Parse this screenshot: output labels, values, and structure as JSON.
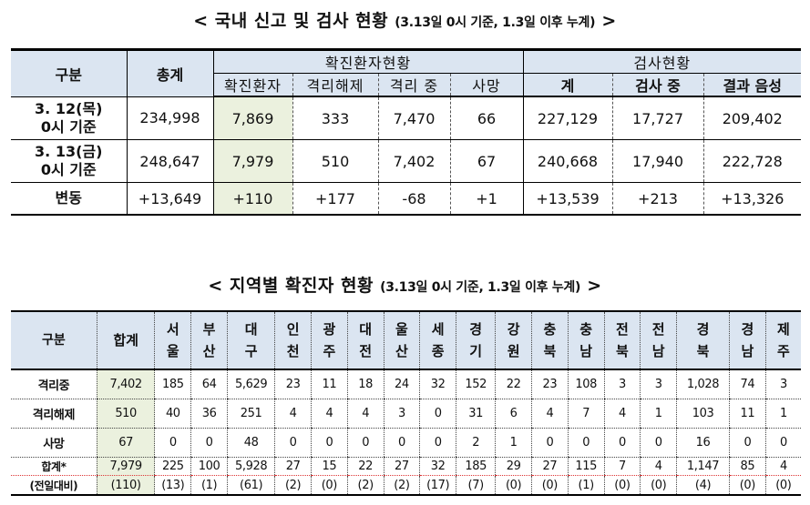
{
  "title1": {
    "main": "< 국내 신고 및 검사 현황",
    "sub": "(3.13일 0시 기준, 1.3일 이후 누계)",
    "end": ">"
  },
  "table1": {
    "headers": {
      "gubun": "구분",
      "total": "총계",
      "confirmed_group": "확진환자현황",
      "test_group": "검사현황",
      "confirmed": "확진환자",
      "released": "격리해제",
      "isolated": "격리 중",
      "deaths": "사망",
      "test_total": "계",
      "testing": "검사 중",
      "negative": "결과 음성"
    },
    "rows": [
      {
        "label1": "3. 12(목)",
        "label2": "0시 기준",
        "total": "234,998",
        "confirmed": "7,869",
        "released": "333",
        "isolated": "7,470",
        "deaths": "66",
        "test_total": "227,129",
        "testing": "17,727",
        "negative": "209,402"
      },
      {
        "label1": "3. 13(금)",
        "label2": "0시 기준",
        "total": "248,647",
        "confirmed": "7,979",
        "released": "510",
        "isolated": "7,402",
        "deaths": "67",
        "test_total": "240,668",
        "testing": "17,940",
        "negative": "222,728"
      }
    ],
    "change": {
      "label": "변동",
      "total": "+13,649",
      "confirmed": "+110",
      "released": "+177",
      "isolated": "-68",
      "deaths": "+1",
      "test_total": "+13,539",
      "testing": "+213",
      "negative": "+13,326"
    }
  },
  "title2": {
    "main": "< 지역별 확진자 현황",
    "sub": "(3.13일 0시 기준, 1.3일 이후 누계)",
    "end": ">"
  },
  "table2": {
    "corner": "구분",
    "sum_header": "합계",
    "regions": [
      [
        "서",
        "울"
      ],
      [
        "부",
        "산"
      ],
      [
        "대",
        "구"
      ],
      [
        "인",
        "천"
      ],
      [
        "광",
        "주"
      ],
      [
        "대",
        "전"
      ],
      [
        "울",
        "산"
      ],
      [
        "세",
        "종"
      ],
      [
        "경",
        "기"
      ],
      [
        "강",
        "원"
      ],
      [
        "충",
        "북"
      ],
      [
        "충",
        "남"
      ],
      [
        "전",
        "북"
      ],
      [
        "전",
        "남"
      ],
      [
        "경",
        "북"
      ],
      [
        "경",
        "남"
      ],
      [
        "제",
        "주"
      ]
    ],
    "rows": [
      {
        "label": "격리중",
        "sum": "7,402",
        "values": [
          "185",
          "64",
          "5,629",
          "23",
          "11",
          "18",
          "24",
          "32",
          "152",
          "22",
          "23",
          "108",
          "3",
          "3",
          "1,028",
          "74",
          "3"
        ]
      },
      {
        "label": "격리해제",
        "sum": "510",
        "values": [
          "40",
          "36",
          "251",
          "4",
          "4",
          "4",
          "3",
          "0",
          "31",
          "6",
          "4",
          "7",
          "4",
          "1",
          "103",
          "11",
          "1"
        ]
      },
      {
        "label": "사망",
        "sum": "67",
        "values": [
          "0",
          "0",
          "48",
          "0",
          "0",
          "0",
          "0",
          "0",
          "2",
          "1",
          "0",
          "0",
          "0",
          "0",
          "16",
          "0",
          "0"
        ]
      }
    ],
    "total": {
      "label": "합계*",
      "sum": "7,979",
      "values": [
        "225",
        "100",
        "5,928",
        "27",
        "15",
        "22",
        "27",
        "32",
        "185",
        "29",
        "27",
        "115",
        "7",
        "4",
        "1,147",
        "85",
        "4"
      ]
    },
    "diff": {
      "label": "(전일대비)",
      "sum": "(110)",
      "values": [
        "(13)",
        "(1)",
        "(61)",
        "(2)",
        "(0)",
        "(2)",
        "(2)",
        "(17)",
        "(7)",
        "(0)",
        "(0)",
        "(1)",
        "(0)",
        "(0)",
        "(4)",
        "(0)",
        "(0)"
      ]
    }
  },
  "colors": {
    "header_bg": "#dbe5f1",
    "highlight_bg": "#ebf1de"
  }
}
